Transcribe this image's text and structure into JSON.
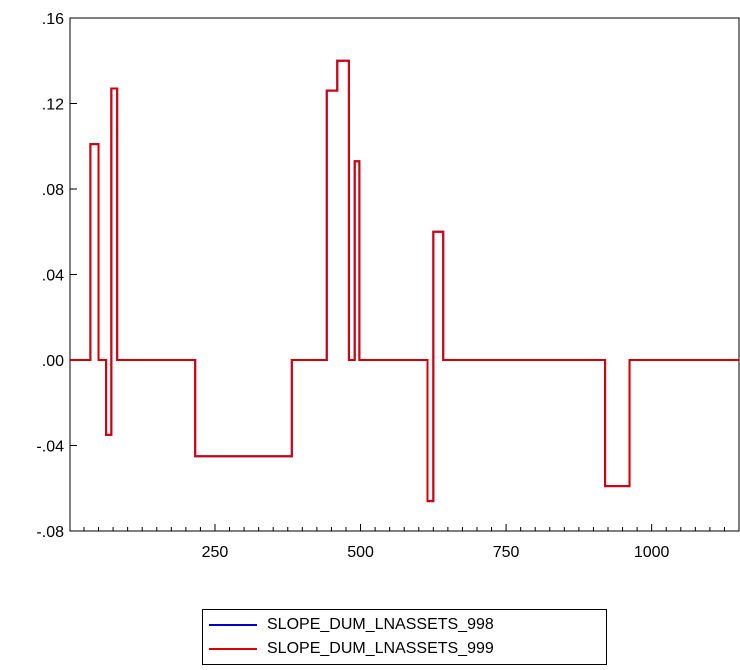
{
  "chart_data": {
    "type": "line",
    "title": "",
    "xlabel": "",
    "ylabel": "",
    "xlim": [
      1,
      1150
    ],
    "ylim": [
      -0.08,
      0.16
    ],
    "x_ticks": [
      250,
      500,
      750,
      1000
    ],
    "x_tick_labels": [
      "250",
      "500",
      "750",
      "1000"
    ],
    "y_ticks": [
      -0.08,
      -0.04,
      0.0,
      0.04,
      0.08,
      0.12,
      0.16
    ],
    "y_tick_labels": [
      "-.08",
      "-.04",
      ".00",
      ".04",
      ".08",
      ".12",
      ".16"
    ],
    "grid": false,
    "legend_position": "bottom",
    "series": [
      {
        "name": "SLOPE_DUM_LNASSETS_998",
        "color": "#0000cc",
        "steps": [
          [
            1,
            0
          ],
          [
            36,
            0.101
          ],
          [
            50,
            0
          ],
          [
            63,
            -0.035
          ],
          [
            72,
            0.127
          ],
          [
            82,
            0
          ],
          [
            216,
            -0.045
          ],
          [
            382,
            0
          ],
          [
            442,
            0.126
          ],
          [
            460,
            0.14
          ],
          [
            480,
            0
          ],
          [
            490,
            0.093
          ],
          [
            498,
            0
          ],
          [
            615,
            -0.066
          ],
          [
            625,
            0.06
          ],
          [
            642,
            0
          ],
          [
            920,
            -0.059
          ],
          [
            962,
            0
          ],
          [
            1150,
            0
          ]
        ]
      },
      {
        "name": "SLOPE_DUM_LNASSETS_999",
        "color": "#dd0000",
        "steps": [
          [
            1,
            0
          ],
          [
            36,
            0.101
          ],
          [
            50,
            0
          ],
          [
            63,
            -0.035
          ],
          [
            72,
            0.127
          ],
          [
            82,
            0
          ],
          [
            216,
            -0.045
          ],
          [
            382,
            0
          ],
          [
            442,
            0.126
          ],
          [
            460,
            0.14
          ],
          [
            480,
            0
          ],
          [
            490,
            0.093
          ],
          [
            498,
            0
          ],
          [
            615,
            -0.066
          ],
          [
            625,
            0.06
          ],
          [
            642,
            0
          ],
          [
            920,
            -0.059
          ],
          [
            962,
            0
          ],
          [
            1150,
            0
          ]
        ]
      }
    ]
  }
}
